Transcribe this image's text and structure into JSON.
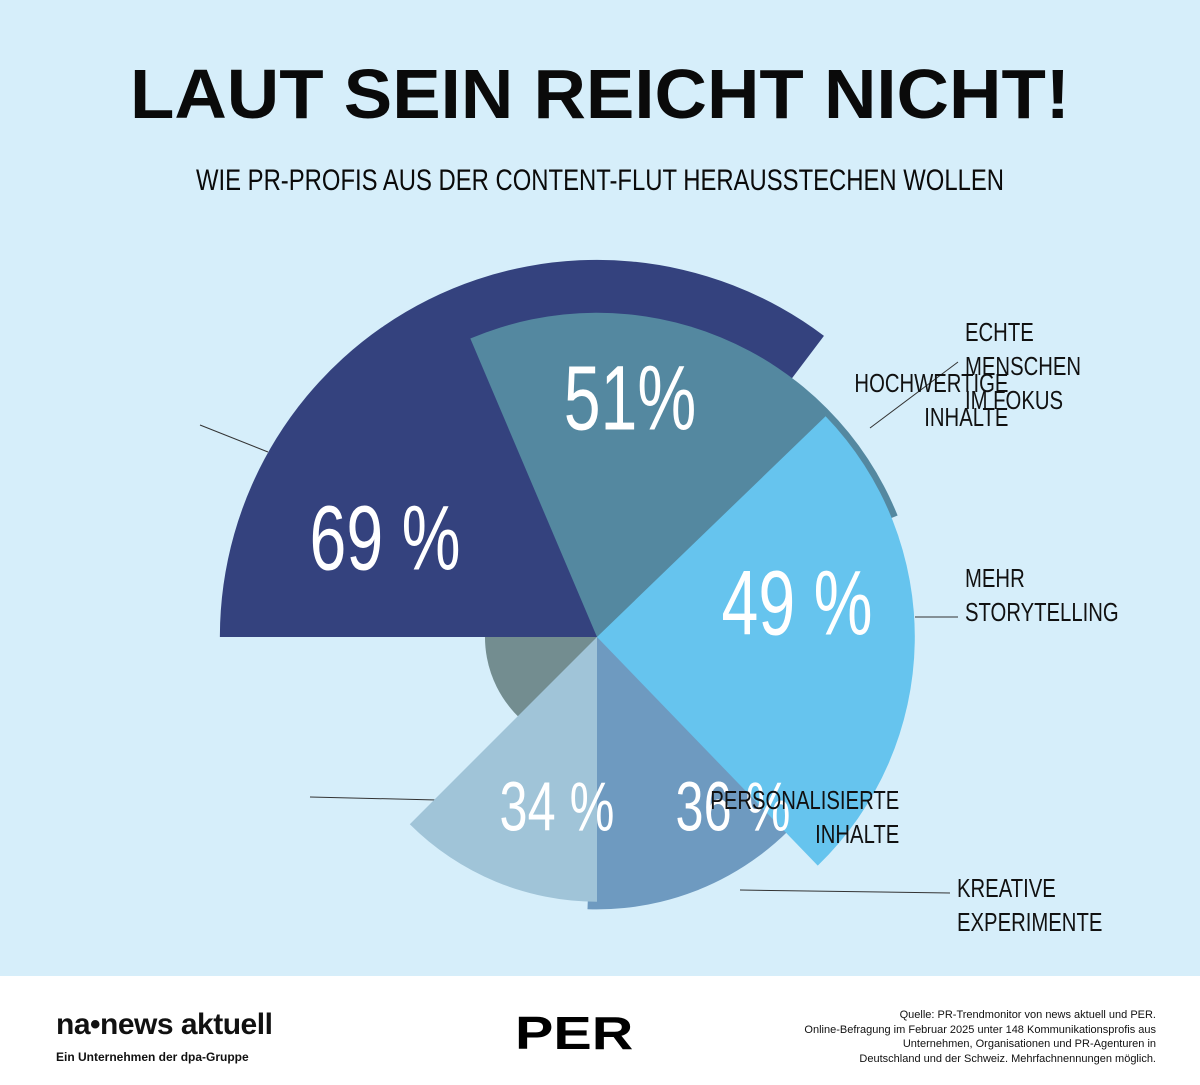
{
  "chart_data": {
    "type": "polar",
    "title": "LAUT SEIN REICHT NICHT!",
    "subtitle": "WIE PR-PROFIS AUS DER CONTENT-FLUT HERAUSSTECHEN WOLLEN",
    "categories": [
      "HOCHWERTIGE\nINHALTE",
      "ECHTE MENSCHEN\nIM FOKUS",
      "MEHR\nSTORYTELLING",
      "KREATIVE\nEXPERIMENTE",
      "PERSONALISIERTE\nINHALTE"
    ],
    "values": [
      69,
      51,
      49,
      36,
      34
    ],
    "value_labels": [
      "69 %",
      "51%",
      "49 %",
      "36 %",
      "34 %"
    ],
    "colors": [
      "#34427e",
      "#5488a0",
      "#66c4ee",
      "#6e9ac0",
      "#a0c4d8"
    ]
  },
  "footer": {
    "logo": "na•news aktuell",
    "logo_sub": "Ein Unternehmen der dpa-Gruppe",
    "partner": "PER",
    "source": [
      "Quelle: PR-Trendmonitor von news aktuell und PER.",
      "Online-Befragung im Februar 2025 unter 148 Kommunikationsprofis aus",
      "Unternehmen, Organisationen und PR-Agenturen in",
      "Deutschland und der Schweiz. Mehrfachnennungen möglich."
    ]
  }
}
